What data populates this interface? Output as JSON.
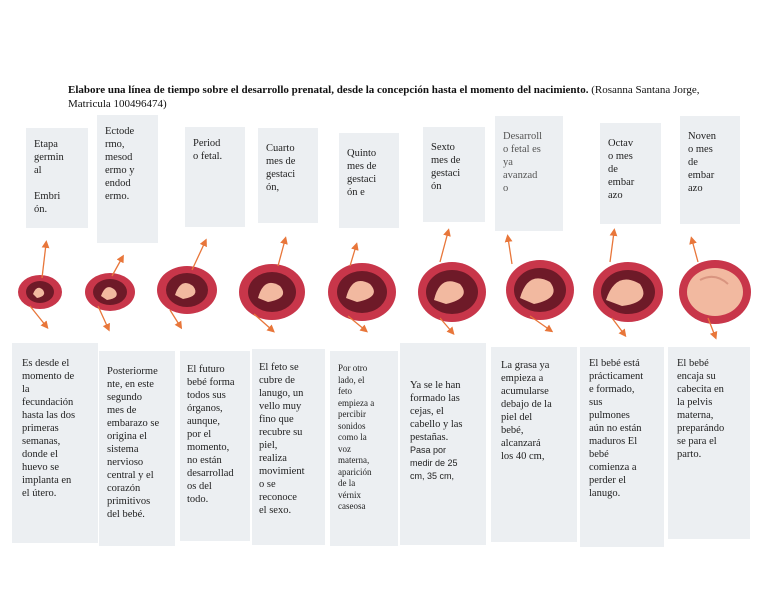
{
  "heading": {
    "bold": "Elabore una línea de tiempo sobre el desarrollo prenatal, desde la concepción hasta el momento del nacimiento.",
    "normal": "(Rosanna Santana Jorge, Matricula 100496474)"
  },
  "top_labels": [
    "Etapa\ngermin\nal\n\nEmbri\nón.",
    "Ectode\nrmo,\nmesod\nermo y\nendod\nermo.",
    "Period\no fetal.",
    "Cuarto\nmes de\ngestaci\nón,",
    "Quinto\nmes de\ngestaci\nón e",
    "Sexto\nmes de\ngestaci\nón",
    "Desarroll\no fetal es\nya\navanzad\no",
    "Octav\no mes\nde\nembar\nazo",
    "Noven\no mes\nde\nembar\nazo"
  ],
  "bottom_texts": [
    "Es desde el\nmomento de\nla\nfecundación\nhasta las dos\nprimeras\nsemanas,\ndonde el\nhuevo se\nimplanta en\nel útero.",
    "Posteriorme\nnte, en este\nsegundo\nmes de\nembarazo se\norigina el\nsistema\nnervioso\ncentral y el\ncorazón\nprimitivos\ndel bebé.",
    "El futuro\nbebé forma\ntodos sus\nórganos,\naunque,\npor el\nmomento,\nno están\ndesarrollad\nos del\ntodo.",
    "El feto se\ncubre de\nlanugo, un\nvello muy\nfino que\nrecubre su\npiel,\nrealiza\nmovimient\no se\nreconoce\nel sexo.",
    "Por otro\nlado, el\nfeto\nempieza a\npercibir\nsonidos\ncomo la\nvoz\nmaterna,\naparición\nde la\nvérnix\ncaseosa",
    "Ya se le han\nformado las\ncejas, el\ncabello y las\npestañas.",
    "La grasa ya\nempieza a\nacumularse\ndebajo de la\npiel del\nbebé,\nalcanzará\nlos 40 cm,",
    "El bebé está\nprácticament\ne formado,\nsus\npulmones\naún no están\nmaduros El\nbebé\ncomienza a\nperder el\nlanugo.",
    "El bebé\nencaja su\ncabecita en\nla pelvis\nmaterna,\npreparándo\nse para el\nparto."
  ],
  "sixth_extra": "Pasa por\nmedir de 25\ncm, 35 cm,",
  "colors": {
    "box": "#eceff2",
    "arrow": "#e8763a",
    "uterus": "#c8364a",
    "uterus_inner": "#6e1a28",
    "fetus": "#f2b9a0"
  }
}
